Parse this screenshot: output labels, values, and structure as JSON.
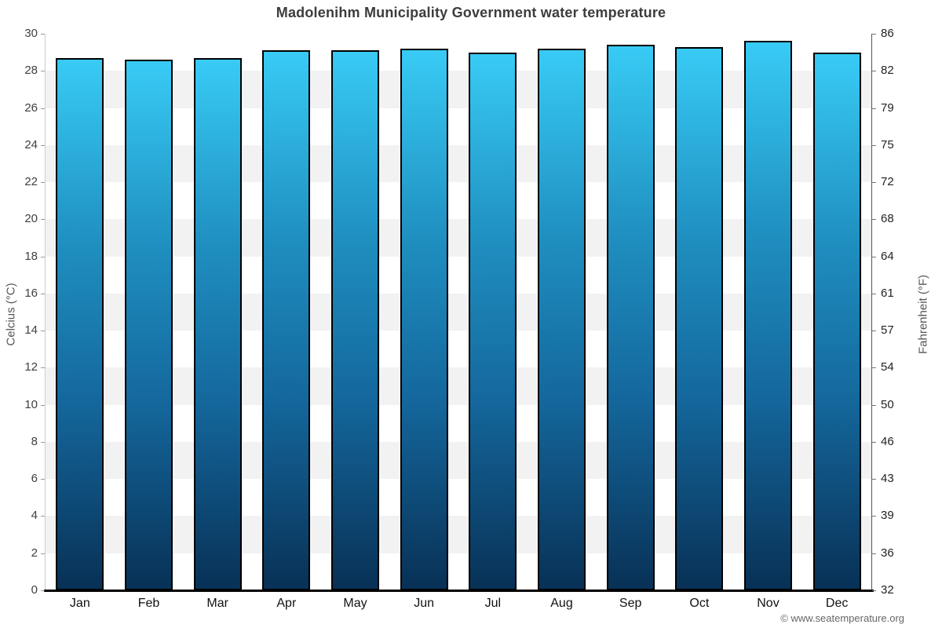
{
  "header": {
    "title": "Madolenihm Municipality Government water temperature"
  },
  "axes": {
    "left": {
      "title": "Celcius (°C)"
    },
    "right": {
      "title": "Fahrenheit (°F)"
    }
  },
  "chart_data": {
    "type": "bar",
    "title": "Madolenihm Municipality Government water temperature",
    "categories": [
      "Jan",
      "Feb",
      "Mar",
      "Apr",
      "May",
      "Jun",
      "Jul",
      "Aug",
      "Sep",
      "Oct",
      "Nov",
      "Dec"
    ],
    "values": [
      28.7,
      28.6,
      28.7,
      29.1,
      29.1,
      29.2,
      29.0,
      29.2,
      29.4,
      29.3,
      29.6,
      29.0
    ],
    "series_name": "Water temperature (°C)",
    "xlabel": "",
    "ylabel_left": "Celcius (°C)",
    "ylabel_right": "Fahrenheit (°F)",
    "ylim": [
      0,
      30
    ],
    "ytick_step": 2,
    "left_tick_labels": [
      "30",
      "28",
      "26",
      "24",
      "22",
      "20",
      "18",
      "16",
      "14",
      "12",
      "10",
      "8",
      "6",
      "4",
      "2",
      "0"
    ],
    "fahrenheit_tick_labels": [
      "86",
      "82",
      "79",
      "75",
      "72",
      "68",
      "64",
      "61",
      "57",
      "54",
      "50",
      "46",
      "43",
      "39",
      "36",
      "32"
    ],
    "grid": "alternating-horizontal-bands",
    "legend": "none",
    "band_colors": [
      "#ffffff",
      "#f2f2f2"
    ],
    "bar_gradient": [
      "#38cbf5",
      "#1f8fc0",
      "#14679c",
      "#083156"
    ],
    "bar_border_color": "#000000"
  },
  "footer": {
    "attribution": "© www.seatemperature.org"
  }
}
